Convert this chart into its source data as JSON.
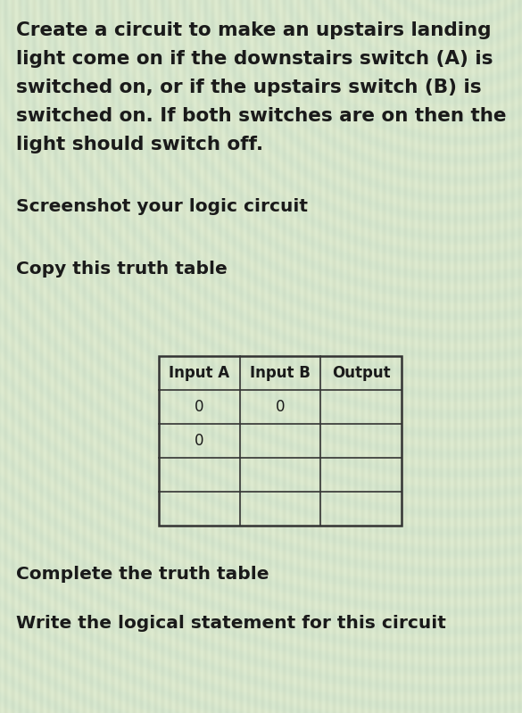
{
  "background_color": "#d4e4cc",
  "paragraph1_lines": [
    "Create a circuit to make an upstairs landing",
    "light come on if the downstairs switch (A) is",
    "switched on, or if the upstairs switch (B) is",
    "switched on. If both switches are on then the",
    "light should switch off."
  ],
  "paragraph2": "Screenshot your logic circuit",
  "paragraph3": "Copy this truth table",
  "paragraph4": "Complete the truth table",
  "paragraph5": "Write the logical statement for this circuit",
  "table_headers": [
    "Input A",
    "Input B",
    "Output"
  ],
  "table_row1": [
    "0",
    "0",
    ""
  ],
  "table_row2": [
    "0",
    "",
    ""
  ],
  "table_row3": [
    "",
    "",
    ""
  ],
  "table_row4": [
    "",
    "",
    ""
  ],
  "text_color": "#1a1a1a",
  "table_border_color": "#333333",
  "p1_fontsize": 15.5,
  "p2_fontsize": 14.5,
  "table_header_fontsize": 12,
  "table_body_fontsize": 12
}
